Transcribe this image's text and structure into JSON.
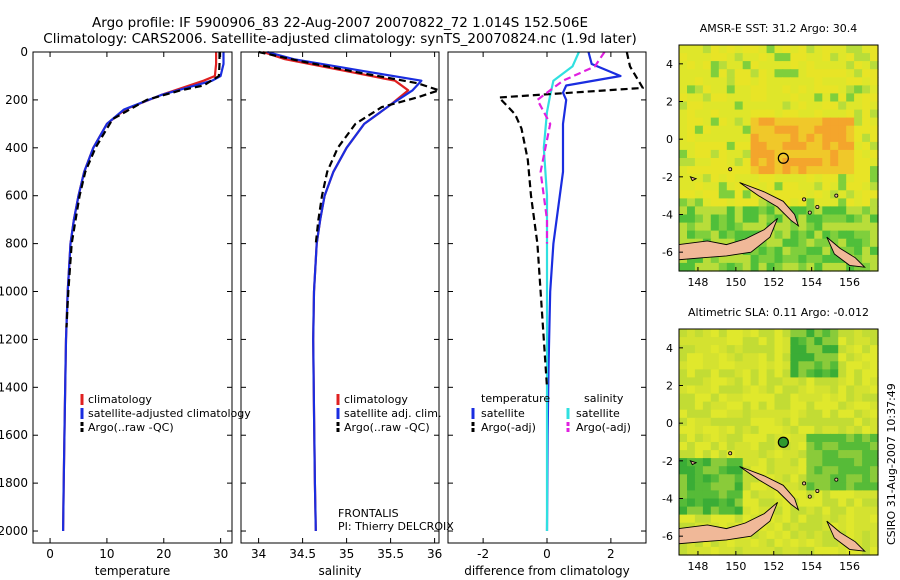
{
  "header": {
    "line1": "Argo profile: IF 5900906_83 22-Aug-2007 20070822_72 1.014S 152.506E",
    "line2": "Climatology: CARS2006. Satellite-adjusted climatology: synTS_20070824.nc (1.9d later)"
  },
  "footer": {
    "credit": "CSIRO 31-Aug-2007 10:37:49"
  },
  "float_info": {
    "project": "FRONTALIS",
    "pi": "PI: Thierry DELCROIX"
  },
  "maps": [
    {
      "title": "AMSR-E SST: 31.2 Argo: 30.4",
      "marker": "open",
      "xticks": [
        "148",
        "150",
        "152",
        "154",
        "156"
      ],
      "yticks": [
        "4",
        "2",
        "0",
        "-2",
        "-4",
        "-6"
      ],
      "palette": [
        "#dfe62a",
        "#e8e426",
        "#f0c82a",
        "#f4a52c",
        "#b8dd3a",
        "#7fcf3c",
        "#4fbf3a"
      ]
    },
    {
      "title": "Altimetric SLA: 0.11 Argo: -0.012",
      "marker": "filled",
      "xticks": [
        "148",
        "150",
        "152",
        "154",
        "156"
      ],
      "yticks": [
        "4",
        "2",
        "0",
        "-2",
        "-4",
        "-6"
      ],
      "palette": [
        "#e0e82c",
        "#d4e230",
        "#c2dc34",
        "#a8d438",
        "#8acb3a",
        "#56bb38",
        "#3aad36"
      ]
    },
    {
      "land_color": "#f0b898",
      "marker_color": "#2e9a2e"
    }
  ],
  "chart_data": [
    {
      "type": "line",
      "xlabel": "temperature",
      "xticks": [
        "0",
        "10",
        "20",
        "30"
      ],
      "xlim": [
        -3,
        32
      ],
      "yticks": [
        "0",
        "200",
        "400",
        "600",
        "800",
        "1000",
        "1200",
        "1400",
        "1600",
        "1800",
        "2000"
      ],
      "ylim": [
        2050,
        0
      ],
      "yreversed": true,
      "legend": [
        "climatology",
        "satellite-adjusted climatology",
        "Argo(..raw -QC)"
      ],
      "series": [
        {
          "name": "climatology",
          "color": "#e02020",
          "dash": "",
          "x": [
            29.2,
            29.2,
            29.0,
            27.0,
            19.5,
            13.2,
            10.0,
            7.6,
            6.0,
            5.0,
            4.2,
            3.6,
            3.1,
            2.8,
            2.6,
            2.4,
            2.3
          ],
          "y": [
            0,
            50,
            100,
            120,
            180,
            240,
            300,
            400,
            500,
            600,
            700,
            800,
            1000,
            1200,
            1500,
            1800,
            2000
          ]
        },
        {
          "name": "satellite-adjusted climatology",
          "color": "#1a2de0",
          "dash": "",
          "x": [
            30.5,
            30.5,
            30.0,
            28.5,
            19.5,
            13.0,
            10.0,
            7.6,
            6.0,
            5.0,
            4.2,
            3.6,
            3.1,
            2.8,
            2.6,
            2.4,
            2.3
          ],
          "y": [
            0,
            50,
            100,
            120,
            180,
            240,
            300,
            400,
            500,
            600,
            700,
            800,
            1000,
            1200,
            1500,
            1800,
            2000
          ]
        },
        {
          "name": "Argo(..raw -QC)",
          "color": "#000000",
          "dash": "7 4",
          "x": [
            29.8,
            29.8,
            29.7,
            27.0,
            23.0,
            17.0,
            11.0,
            8.0,
            6.2,
            5.2,
            4.5,
            3.8,
            3.2,
            2.9
          ],
          "y": [
            0,
            50,
            100,
            140,
            160,
            200,
            280,
            400,
            500,
            600,
            700,
            800,
            1000,
            1150
          ]
        }
      ]
    },
    {
      "type": "line",
      "xlabel": "salinity",
      "xticks": [
        "34",
        "34.5",
        "35",
        "35.5",
        "36"
      ],
      "xlim": [
        33.8,
        36.05
      ],
      "yticks": [
        "0",
        "200",
        "400",
        "600",
        "800",
        "1000",
        "1200",
        "1400",
        "1600",
        "1800",
        "2000"
      ],
      "ylim": [
        2050,
        0
      ],
      "yreversed": true,
      "legend": [
        "climatology",
        "satellite adj. clim.",
        "Argo(..raw -QC)"
      ],
      "series": [
        {
          "name": "climatology",
          "color": "#e02020",
          "dash": "",
          "x": [
            34.05,
            34.3,
            35.0,
            35.55,
            35.7,
            35.5,
            35.2,
            35.0,
            34.85,
            34.75,
            34.7,
            34.66,
            34.63,
            34.62,
            34.63,
            34.64,
            34.65
          ],
          "y": [
            0,
            30,
            80,
            120,
            160,
            220,
            300,
            400,
            500,
            600,
            700,
            800,
            1000,
            1200,
            1500,
            1800,
            2000
          ]
        },
        {
          "name": "satellite adj. clim.",
          "color": "#1a2de0",
          "dash": "",
          "x": [
            34.1,
            34.4,
            35.2,
            35.85,
            35.75,
            35.5,
            35.2,
            35.0,
            34.85,
            34.75,
            34.7,
            34.66,
            34.63,
            34.62,
            34.63,
            34.64,
            34.65
          ],
          "y": [
            0,
            30,
            80,
            120,
            160,
            220,
            300,
            400,
            500,
            600,
            700,
            800,
            1000,
            1200,
            1500,
            1800,
            2000
          ]
        },
        {
          "name": "Argo(..raw -QC)",
          "color": "#000000",
          "dash": "7 4",
          "x": [
            34.0,
            34.5,
            35.2,
            35.8,
            36.05,
            35.8,
            35.4,
            35.1,
            34.9,
            34.78,
            34.72,
            34.68,
            34.65
          ],
          "y": [
            0,
            40,
            90,
            130,
            160,
            190,
            230,
            300,
            400,
            500,
            600,
            700,
            800
          ]
        }
      ]
    },
    {
      "type": "line",
      "xlabel": "difference from climatology",
      "xticks": [
        "-2",
        "0",
        "2"
      ],
      "xlim": [
        -3.1,
        3.1
      ],
      "yticks": [
        "0",
        "200",
        "400",
        "600",
        "800",
        "1000",
        "1200",
        "1400",
        "1600",
        "1800",
        "2000"
      ],
      "ylim": [
        2050,
        0
      ],
      "yreversed": true,
      "legend_groups": [
        {
          "heading": "temperature",
          "items": [
            "satellite",
            "Argo(-adj)"
          ]
        },
        {
          "heading": "salinity",
          "items": [
            "satellite",
            "Argo(-adj)"
          ]
        }
      ],
      "series": [
        {
          "name": "temperature satellite",
          "color": "#1a2de0",
          "dash": "",
          "x": [
            1.3,
            1.4,
            2.3,
            0.6,
            0.5,
            0.6,
            0.5,
            0.5,
            0.5,
            0.4,
            0.2,
            0.1,
            0.05,
            0.02,
            0.0
          ],
          "y": [
            0,
            50,
            100,
            140,
            170,
            200,
            300,
            400,
            500,
            600,
            800,
            1000,
            1300,
            1600,
            2000
          ]
        },
        {
          "name": "salinity satellite",
          "color": "#30e0e0",
          "dash": "",
          "x": [
            1.0,
            0.8,
            0.2,
            0.1,
            0.0,
            -0.1,
            0.0,
            0.0,
            0.0,
            0.0,
            0.0
          ],
          "y": [
            0,
            60,
            120,
            180,
            250,
            400,
            600,
            800,
            1000,
            1500,
            2000
          ]
        },
        {
          "name": "temperature Argo(-adj)",
          "color": "#000000",
          "dash": "7 4",
          "x": [
            2.5,
            2.6,
            3.0,
            -1.5,
            -1.0,
            -0.8,
            -0.6,
            -0.5,
            -0.4,
            -0.3,
            -0.2,
            -0.1,
            0.0
          ],
          "y": [
            0,
            60,
            150,
            190,
            260,
            320,
            450,
            600,
            700,
            800,
            1000,
            1200,
            1400
          ]
        },
        {
          "name": "salinity Argo(-adj)",
          "color": "#e020e0",
          "dash": "7 4",
          "x": [
            1.8,
            1.5,
            0.5,
            -0.3,
            0.1,
            -0.2,
            0.0,
            0.0
          ],
          "y": [
            0,
            60,
            120,
            200,
            300,
            500,
            700,
            800
          ]
        }
      ]
    }
  ]
}
